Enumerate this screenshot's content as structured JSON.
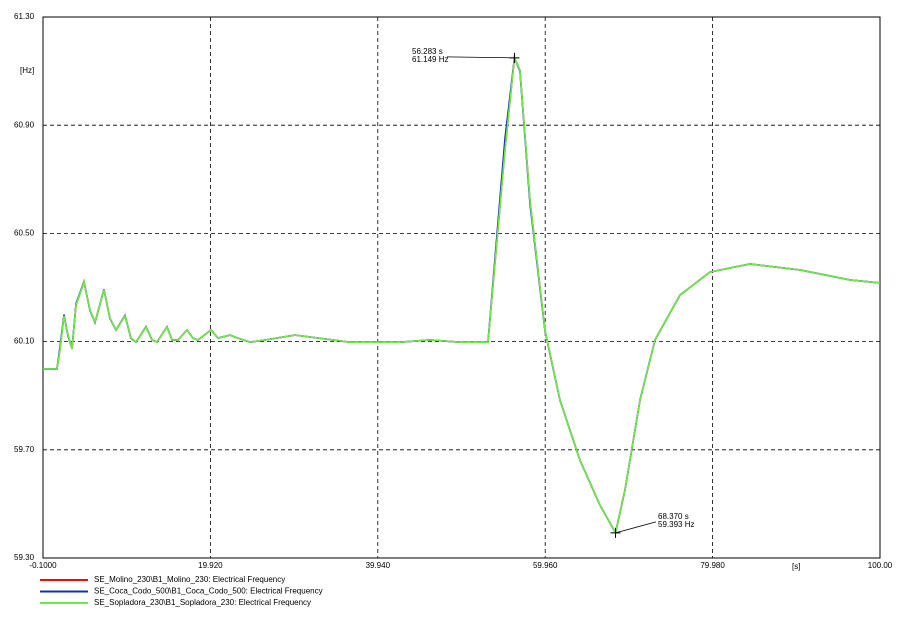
{
  "chart_data": {
    "type": "line",
    "y_label": "[Hz]",
    "x_label": "[s]",
    "xlim": [
      -0.1,
      100.0
    ],
    "ylim": [
      59.3,
      61.3
    ],
    "xticks": [
      {
        "value": -0.1,
        "label": "-0.1000"
      },
      {
        "value": 19.92,
        "label": "19.920"
      },
      {
        "value": 39.94,
        "label": "39.940"
      },
      {
        "value": 59.96,
        "label": "59.960"
      },
      {
        "value": 79.98,
        "label": "79.980"
      },
      {
        "value": 100.0,
        "label": "100.00"
      }
    ],
    "yticks": [
      {
        "value": 59.3,
        "label": "59.30"
      },
      {
        "value": 59.7,
        "label": "59.70"
      },
      {
        "value": 60.1,
        "label": "60.10"
      },
      {
        "value": 60.5,
        "label": "60.50"
      },
      {
        "value": 60.9,
        "label": "60.90"
      },
      {
        "value": 61.3,
        "label": "61.30"
      }
    ],
    "grid": true,
    "x": [
      -0.1,
      1.57,
      1.93,
      2.41,
      2.89,
      3.37,
      3.85,
      4.8,
      5.52,
      6.12,
      7.19,
      7.91,
      8.63,
      9.71,
      10.42,
      11.02,
      12.22,
      12.94,
      13.53,
      14.73,
      15.33,
      16.04,
      17.12,
      17.84,
      18.44,
      19.99,
      20.83,
      22.26,
      23.22,
      24.66,
      26.45,
      30.04,
      31.83,
      36.61,
      42.59,
      46.18,
      49.77,
      53.12,
      55.15,
      56.283,
      56.94,
      58.14,
      59.93,
      61.72,
      64.11,
      66.5,
      68.37,
      69.5,
      71.3,
      73.09,
      76.08,
      79.66,
      84.45,
      90.43,
      96.41,
      100.0
    ],
    "series": [
      {
        "name": "SE_Molino_230\\B1_Molino_230: Electrical Frequency",
        "color": "#e01010",
        "values": [
          59.999,
          59.999,
          60.069,
          60.195,
          60.124,
          60.073,
          60.235,
          60.32,
          60.217,
          60.172,
          60.291,
          60.187,
          60.143,
          60.195,
          60.113,
          60.098,
          60.154,
          60.106,
          60.098,
          60.154,
          60.106,
          60.106,
          60.143,
          60.113,
          60.106,
          60.143,
          60.113,
          60.124,
          60.113,
          60.098,
          60.106,
          60.124,
          60.117,
          60.098,
          60.098,
          60.106,
          60.098,
          60.098,
          60.808,
          61.149,
          61.104,
          60.623,
          60.143,
          59.884,
          59.662,
          59.496,
          59.393,
          59.551,
          59.884,
          60.106,
          60.272,
          60.357,
          60.387,
          60.365,
          60.328,
          60.317
        ]
      },
      {
        "name": "SE_Coca_Codo_500\\B1_Coca_Codo_500: Electrical Frequency",
        "color": "#1030b0",
        "values": [
          59.999,
          59.999,
          60.08,
          60.2,
          60.12,
          60.075,
          60.24,
          60.322,
          60.215,
          60.17,
          60.293,
          60.185,
          60.143,
          60.197,
          60.112,
          60.098,
          60.155,
          60.106,
          60.098,
          60.155,
          60.106,
          60.106,
          60.143,
          60.113,
          60.106,
          60.143,
          60.113,
          60.124,
          60.113,
          60.098,
          60.106,
          60.124,
          60.117,
          60.098,
          60.098,
          60.106,
          60.098,
          60.098,
          60.85,
          61.149,
          61.1,
          60.61,
          60.14,
          59.884,
          59.662,
          59.496,
          59.393,
          59.551,
          59.884,
          60.106,
          60.272,
          60.357,
          60.387,
          60.365,
          60.328,
          60.317
        ]
      },
      {
        "name": "SE_Sopladora_230\\B1_Sopladora_230: Electrical Frequency",
        "color": "#6ee84a",
        "values": [
          59.999,
          59.999,
          60.069,
          60.195,
          60.124,
          60.073,
          60.235,
          60.32,
          60.217,
          60.172,
          60.291,
          60.187,
          60.143,
          60.195,
          60.113,
          60.098,
          60.154,
          60.106,
          60.098,
          60.154,
          60.106,
          60.106,
          60.143,
          60.113,
          60.106,
          60.143,
          60.113,
          60.124,
          60.113,
          60.098,
          60.106,
          60.124,
          60.117,
          60.098,
          60.098,
          60.106,
          60.098,
          60.098,
          60.808,
          61.149,
          61.104,
          60.623,
          60.143,
          59.884,
          59.662,
          59.496,
          59.393,
          59.551,
          59.884,
          60.106,
          60.272,
          60.357,
          60.387,
          60.365,
          60.328,
          60.317
        ]
      }
    ],
    "annotations": [
      {
        "x": {
          "value": 56.283,
          "label": "56.283 s"
        },
        "y": {
          "value": 61.149,
          "label": "61.149 Hz"
        }
      },
      {
        "x": {
          "value": 68.37,
          "label": "68.370 s"
        },
        "y": {
          "value": 59.393,
          "label": "59.393 Hz"
        }
      }
    ]
  }
}
